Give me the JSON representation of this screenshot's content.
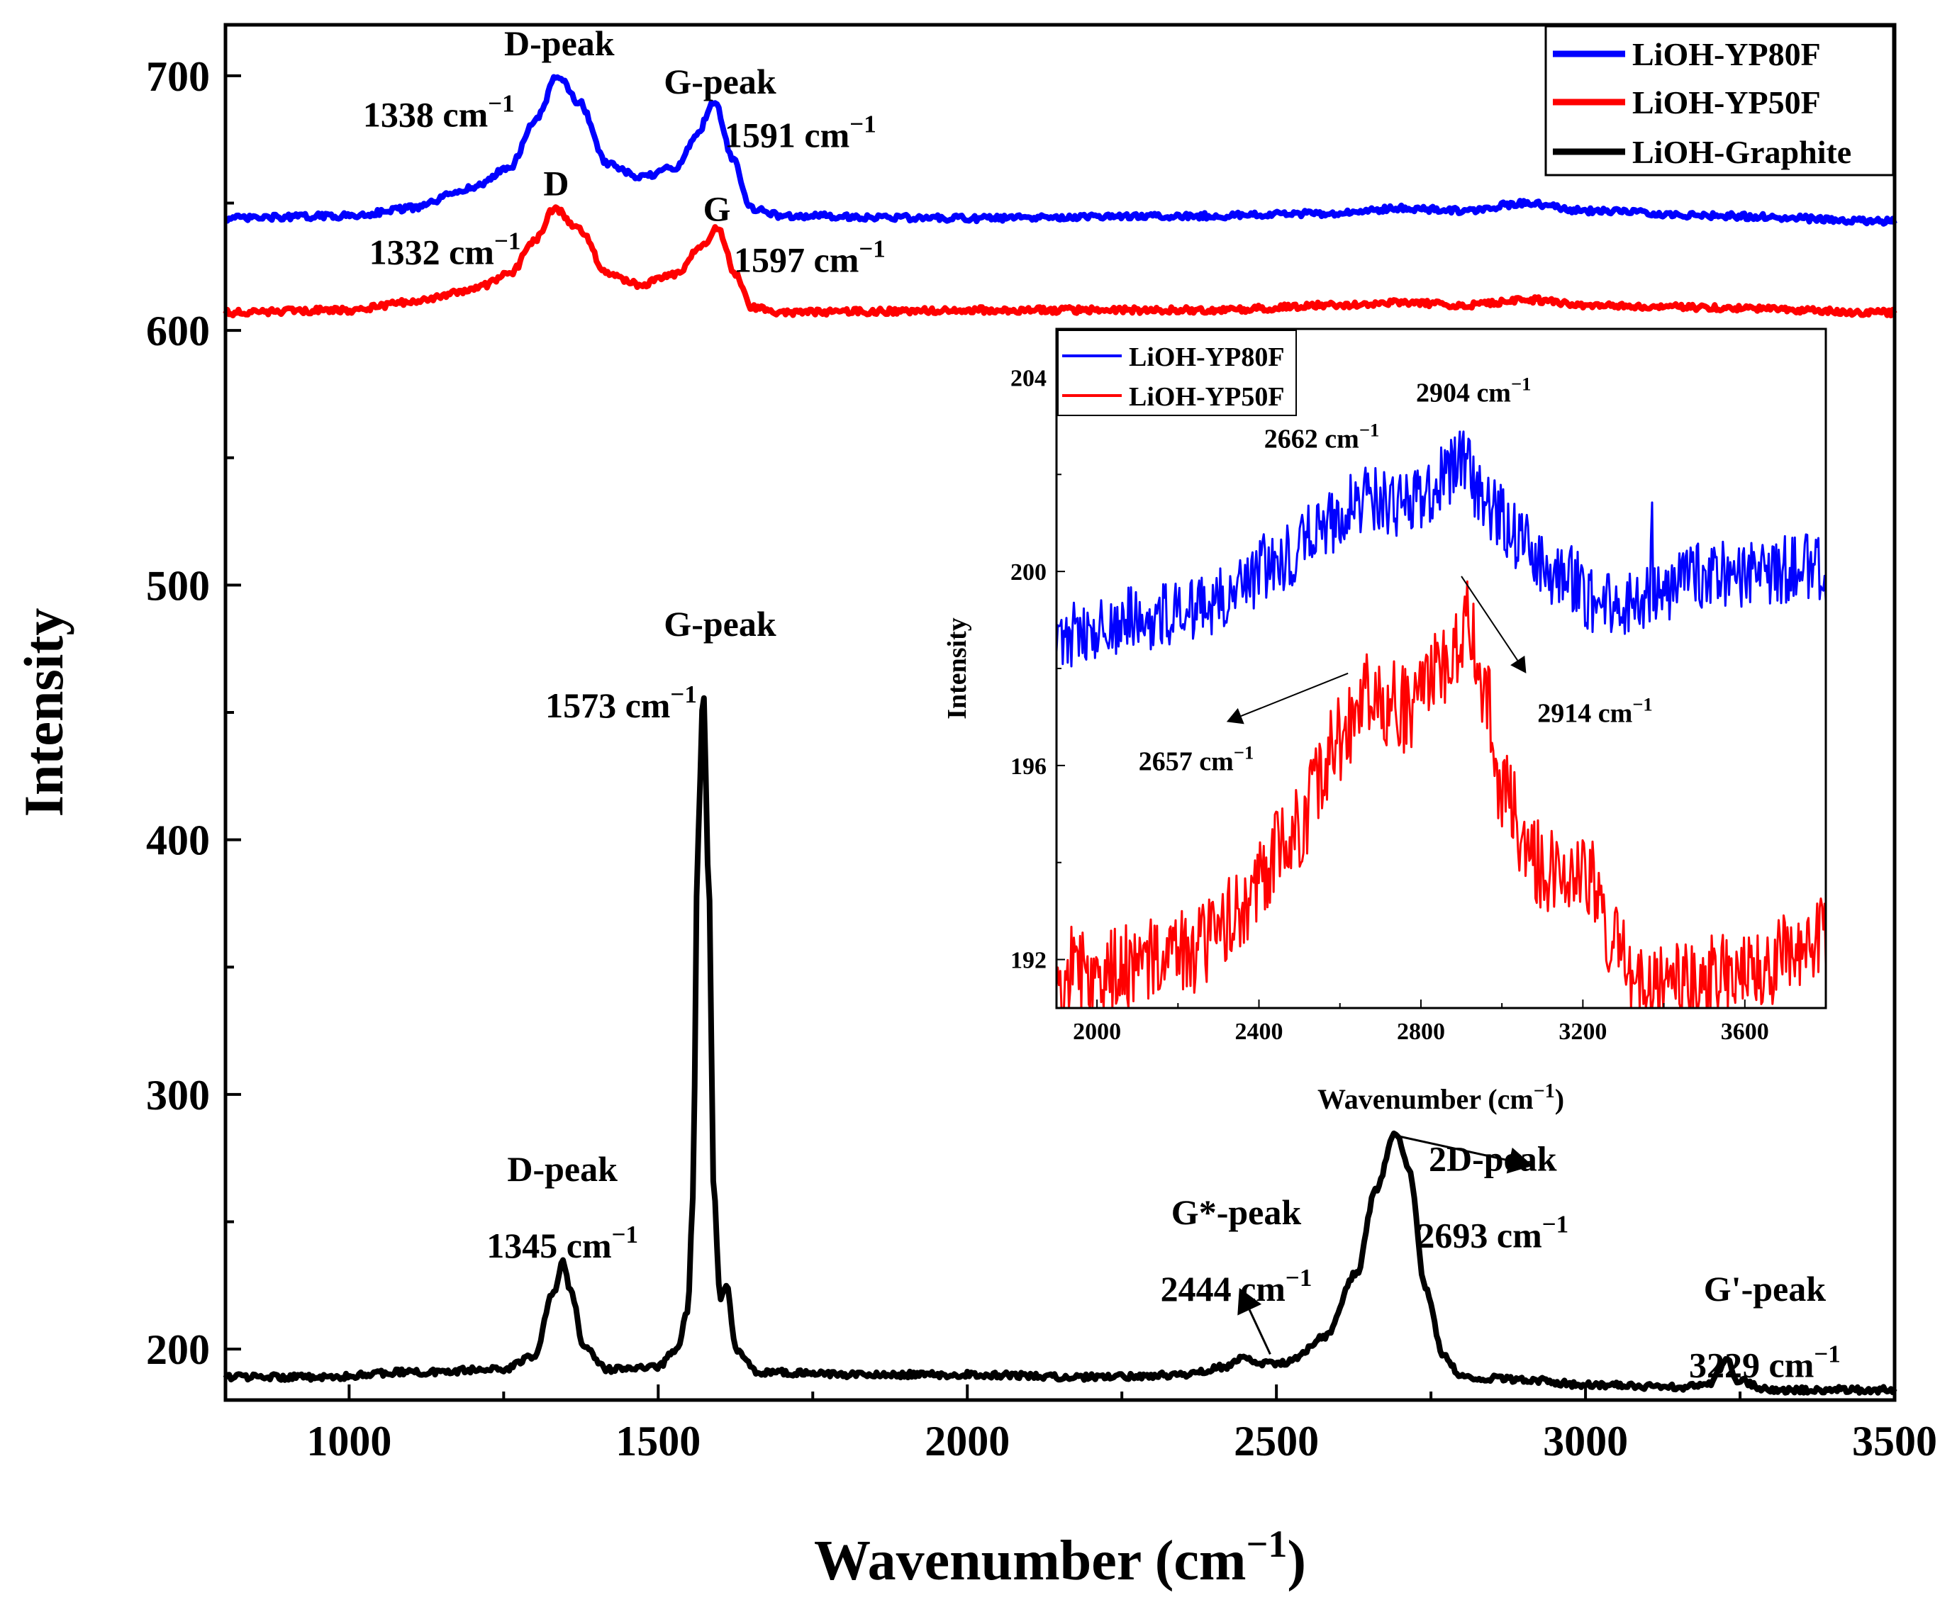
{
  "chart_data": [
    {
      "type": "line",
      "title": "",
      "xlabel": "Wavenumber (cm",
      "xlabel_sup": "−1",
      "xlabel_close": ")",
      "ylabel": "Intensity",
      "xlim": [
        800,
        3500
      ],
      "ylim": [
        180,
        720
      ],
      "grid": false,
      "legend_position": "top-right",
      "x_ticks": [
        1000,
        1500,
        2000,
        2500,
        3000,
        3500
      ],
      "x_tick_labels": [
        "1000",
        "1500",
        "2000",
        "2500",
        "3000",
        "3500"
      ],
      "y_ticks": [
        200,
        300,
        400,
        500,
        600,
        700
      ],
      "y_tick_labels": [
        "200",
        "300",
        "400",
        "500",
        "600",
        "700"
      ],
      "series": [
        {
          "name": "LiOH-YP80F",
          "color": "#0000ff",
          "points": [
            [
              800,
              644
            ],
            [
              1000,
              645
            ],
            [
              1100,
              648
            ],
            [
              1200,
              656
            ],
            [
              1260,
              664
            ],
            [
              1300,
              682
            ],
            [
              1338,
              700
            ],
            [
              1370,
              690
            ],
            [
              1420,
              665
            ],
            [
              1470,
              660
            ],
            [
              1530,
              664
            ],
            [
              1560,
              676
            ],
            [
              1591,
              690
            ],
            [
              1620,
              668
            ],
            [
              1650,
              648
            ],
            [
              1700,
              645
            ],
            [
              2000,
              644
            ],
            [
              2400,
              645
            ],
            [
              2600,
              646
            ],
            [
              2700,
              648
            ],
            [
              2800,
              647
            ],
            [
              2904,
              650
            ],
            [
              3000,
              647
            ],
            [
              3200,
              645
            ],
            [
              3500,
              643
            ]
          ]
        },
        {
          "name": "LiOH-YP50F",
          "color": "#ff0000",
          "points": [
            [
              800,
              607
            ],
            [
              1000,
              608
            ],
            [
              1100,
              611
            ],
            [
              1200,
              616
            ],
            [
              1260,
              622
            ],
            [
              1300,
              635
            ],
            [
              1332,
              648
            ],
            [
              1370,
              640
            ],
            [
              1420,
              622
            ],
            [
              1470,
              618
            ],
            [
              1530,
              622
            ],
            [
              1565,
              632
            ],
            [
              1597,
              640
            ],
            [
              1625,
              622
            ],
            [
              1650,
              609
            ],
            [
              1700,
              607
            ],
            [
              2000,
              608
            ],
            [
              2400,
              608
            ],
            [
              2600,
              610
            ],
            [
              2700,
              611
            ],
            [
              2800,
              610
            ],
            [
              2914,
              612
            ],
            [
              3000,
              610
            ],
            [
              3200,
              609
            ],
            [
              3500,
              607
            ]
          ]
        },
        {
          "name": "LiOH-Graphite",
          "color": "#000000",
          "points": [
            [
              800,
              189
            ],
            [
              950,
              189
            ],
            [
              1100,
              191
            ],
            [
              1250,
              192
            ],
            [
              1300,
              197
            ],
            [
              1330,
              222
            ],
            [
              1345,
              234
            ],
            [
              1360,
              222
            ],
            [
              1380,
              200
            ],
            [
              1420,
              192
            ],
            [
              1500,
              193
            ],
            [
              1530,
              200
            ],
            [
              1548,
              215
            ],
            [
              1556,
              260
            ],
            [
              1564,
              400
            ],
            [
              1573,
              458
            ],
            [
              1582,
              380
            ],
            [
              1590,
              262
            ],
            [
              1600,
              220
            ],
            [
              1612,
              224
            ],
            [
              1625,
              200
            ],
            [
              1660,
              191
            ],
            [
              1800,
              190
            ],
            [
              2000,
              190
            ],
            [
              2200,
              189
            ],
            [
              2350,
              190
            ],
            [
              2420,
              193
            ],
            [
              2444,
              197
            ],
            [
              2470,
              194
            ],
            [
              2520,
              195
            ],
            [
              2580,
              205
            ],
            [
              2630,
              230
            ],
            [
              2660,
              262
            ],
            [
              2693,
              285
            ],
            [
              2715,
              270
            ],
            [
              2740,
              225
            ],
            [
              2770,
              198
            ],
            [
              2800,
              189
            ],
            [
              2900,
              188
            ],
            [
              3000,
              186
            ],
            [
              3150,
              185
            ],
            [
              3200,
              186
            ],
            [
              3215,
              191
            ],
            [
              3229,
              196
            ],
            [
              3243,
              188
            ],
            [
              3300,
              184
            ],
            [
              3500,
              184
            ]
          ]
        }
      ],
      "annotations": [
        {
          "name": "d-peak-label-yp80f",
          "text": "D-peak",
          "x": 1340,
          "y": 708
        },
        {
          "name": "d-peak-value-yp80f",
          "text": "1338 cm",
          "sup": "−1",
          "x": 1145,
          "y": 680
        },
        {
          "name": "g-peak-label-yp80f",
          "text": "G-peak",
          "x": 1600,
          "y": 693
        },
        {
          "name": "g-peak-value-yp80f",
          "text": "1591 cm",
          "sup": "−1",
          "x": 1730,
          "y": 672
        },
        {
          "name": "d-label-yp50f",
          "text": "D",
          "x": 1335,
          "y": 653
        },
        {
          "name": "g-label-yp50f",
          "text": "G",
          "x": 1595,
          "y": 643
        },
        {
          "name": "d-value-yp50f",
          "text": "1332 cm",
          "sup": "−1",
          "x": 1155,
          "y": 626
        },
        {
          "name": "g-value-yp50f",
          "text": "1597 cm",
          "sup": "−1",
          "x": 1745,
          "y": 623
        },
        {
          "name": "g-peak-label-graphite",
          "text": "G-peak",
          "x": 1600,
          "y": 480
        },
        {
          "name": "g-peak-value-graphite",
          "text": "1573 cm",
          "sup": "−1",
          "x": 1440,
          "y": 448
        },
        {
          "name": "d-peak-label-graphite",
          "text": "D-peak",
          "x": 1345,
          "y": 266
        },
        {
          "name": "d-peak-value-graphite",
          "text": "1345 cm",
          "sup": "−1",
          "x": 1345,
          "y": 236
        },
        {
          "name": "gstar-peak-label-graphite",
          "text": "G*-peak",
          "x": 2435,
          "y": 249
        },
        {
          "name": "gstar-peak-value-graphite",
          "text": "2444 cm",
          "sup": "−1",
          "x": 2435,
          "y": 219
        },
        {
          "name": "2d-peak-label-graphite",
          "text": "2D-peak",
          "x": 2850,
          "y": 270
        },
        {
          "name": "2d-peak-value-graphite",
          "text": "2693 cm",
          "sup": "−1",
          "x": 2850,
          "y": 240
        },
        {
          "name": "gprime-peak-label-graphite",
          "text": "G'-peak",
          "x": 3290,
          "y": 219
        },
        {
          "name": "gprime-peak-value-graphite",
          "text": "3229 cm",
          "sup": "−1",
          "x": 3290,
          "y": 189
        }
      ],
      "arrows": [
        {
          "name": "arrow-gstar",
          "from": [
            2490,
            198
          ],
          "to": [
            2440,
            224
          ]
        },
        {
          "name": "arrow-2d",
          "from": [
            2690,
            284
          ],
          "to": [
            2915,
            272
          ]
        }
      ]
    },
    {
      "type": "line",
      "inset": true,
      "title": "",
      "xlabel": "Wavenumber (cm",
      "xlabel_sup": "−1",
      "xlabel_close": ")",
      "ylabel": "Intensity",
      "xlim": [
        1900,
        3800
      ],
      "ylim": [
        191,
        205
      ],
      "grid": false,
      "legend_position": "top-left",
      "x_ticks": [
        2000,
        2400,
        2800,
        3200,
        3600
      ],
      "x_tick_labels": [
        "2000",
        "2400",
        "2800",
        "3200",
        "3600"
      ],
      "y_ticks": [
        192,
        196,
        200,
        204
      ],
      "y_tick_labels": [
        "192",
        "196",
        "200",
        "204"
      ],
      "series": [
        {
          "name": "LiOH-YP80F",
          "color": "#0000ff",
          "noise": 0.7,
          "points": [
            [
              1900,
              198.7
            ],
            [
              2100,
              199.0
            ],
            [
              2300,
              199.4
            ],
            [
              2450,
              200.2
            ],
            [
              2560,
              200.9
            ],
            [
              2662,
              201.5
            ],
            [
              2730,
              201.3
            ],
            [
              2800,
              201.6
            ],
            [
              2904,
              202.2
            ],
            [
              2960,
              201.4
            ],
            [
              3050,
              200.6
            ],
            [
              3150,
              199.9
            ],
            [
              3250,
              199.3
            ],
            [
              3350,
              199.5
            ],
            [
              3500,
              199.9
            ],
            [
              3800,
              200.1
            ]
          ],
          "spikes": [
            [
              2662,
              202.4
            ],
            [
              2710,
              202.3
            ],
            [
              2904,
              203.2
            ],
            [
              3370,
              202.1
            ]
          ]
        },
        {
          "name": "LiOH-YP50F",
          "color": "#ff0000",
          "noise": 0.9,
          "points": [
            [
              1900,
              191.8
            ],
            [
              2100,
              191.9
            ],
            [
              2250,
              192.2
            ],
            [
              2350,
              193.0
            ],
            [
              2480,
              194.6
            ],
            [
              2600,
              196.5
            ],
            [
              2657,
              197.5
            ],
            [
              2720,
              197.3
            ],
            [
              2780,
              197.1
            ],
            [
              2850,
              198.1
            ],
            [
              2914,
              198.8
            ],
            [
              2960,
              197.6
            ],
            [
              3000,
              195.5
            ],
            [
              3080,
              194.0
            ],
            [
              3150,
              193.7
            ],
            [
              3210,
              193.8
            ],
            [
              3260,
              192.5
            ],
            [
              3350,
              191.4
            ],
            [
              3450,
              191.5
            ],
            [
              3600,
              191.8
            ],
            [
              3800,
              192.4
            ]
          ],
          "spikes": [
            [
              2914,
              199.9
            ],
            [
              2660,
              198.1
            ],
            [
              3200,
              194.6
            ]
          ]
        }
      ],
      "annotations": [
        {
          "name": "inset-2662-label",
          "text": "2662 cm",
          "sup": "−1",
          "x": 2555,
          "y": 202.55
        },
        {
          "name": "inset-2904-label",
          "text": "2904 cm",
          "sup": "−1",
          "x": 2930,
          "y": 203.5
        },
        {
          "name": "inset-2657-label",
          "text": "2657 cm",
          "sup": "−1",
          "x": 2245,
          "y": 195.9
        },
        {
          "name": "inset-2914-label",
          "text": "2914 cm",
          "sup": "−1",
          "x": 3230,
          "y": 196.9
        }
      ],
      "arrows": [
        {
          "name": "inset-arrow-2657",
          "from": [
            2620,
            197.9
          ],
          "to": [
            2320,
            196.9
          ]
        },
        {
          "name": "inset-arrow-2914",
          "from": [
            2900,
            199.9
          ],
          "to": [
            3060,
            197.9
          ]
        }
      ]
    }
  ]
}
